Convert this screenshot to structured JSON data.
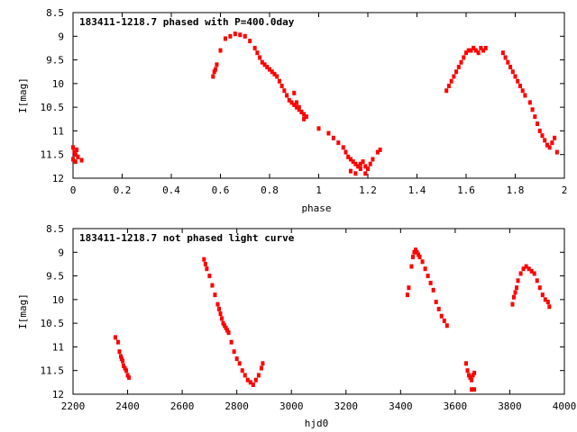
{
  "chart_data": [
    {
      "type": "scatter",
      "title": "183411-1218.7 phased with P=400.0day",
      "xlabel": "phase",
      "ylabel": "I[mag]",
      "xlim": [
        0,
        2
      ],
      "ylim": [
        12,
        8.5
      ],
      "y_inverted": true,
      "grid": false,
      "xticks": [
        0,
        0.2,
        0.4,
        0.6,
        0.8,
        1,
        1.2,
        1.4,
        1.6,
        1.8,
        2
      ],
      "xtick_labels": [
        "0",
        "0.2",
        "0.4",
        "0.6",
        "0.8",
        "1",
        "1.2",
        "1.4",
        "1.6",
        "1.8",
        "2"
      ],
      "yticks": [
        8.5,
        9,
        9.5,
        10,
        10.5,
        11,
        11.5,
        12
      ],
      "ytick_labels": [
        "8.5",
        "9",
        "9.5",
        "10",
        "10.5",
        "11",
        "11.5",
        "12"
      ],
      "marker_color": "#ff0000",
      "series": [
        {
          "x": [
            0.0,
            0.005,
            0.01,
            0.015,
            0.02,
            0.0,
            0.01,
            0.035,
            0.57,
            0.575,
            0.58,
            0.585,
            0.6,
            0.62,
            0.64,
            0.66,
            0.68,
            0.7,
            0.72,
            0.74,
            0.75,
            0.76,
            0.77,
            0.78,
            0.79,
            0.8,
            0.81,
            0.82,
            0.83,
            0.84,
            0.85,
            0.86,
            0.87,
            0.88,
            0.89,
            0.9,
            0.91,
            0.92,
            0.93,
            0.94,
            0.95,
            0.9,
            0.91,
            0.92,
            0.93,
            0.94,
            1.0,
            1.04,
            1.06,
            1.08,
            1.1,
            1.11,
            1.12,
            1.13,
            1.14,
            1.15,
            1.16,
            1.17,
            1.18,
            1.19,
            1.2,
            1.21,
            1.13,
            1.15,
            1.17,
            1.19,
            1.22,
            1.24,
            1.25,
            1.52,
            1.53,
            1.54,
            1.55,
            1.56,
            1.57,
            1.58,
            1.59,
            1.6,
            1.61,
            1.62,
            1.63,
            1.64,
            1.65,
            1.66,
            1.67,
            1.68,
            1.75,
            1.76,
            1.77,
            1.78,
            1.79,
            1.8,
            1.81,
            1.82,
            1.83,
            1.84,
            1.86,
            1.87,
            1.88,
            1.89,
            1.9,
            1.91,
            1.92,
            1.93,
            1.94,
            1.95,
            1.96,
            1.97
          ],
          "y": [
            11.35,
            11.45,
            11.5,
            11.4,
            11.55,
            11.6,
            11.65,
            11.62,
            9.85,
            9.75,
            9.7,
            9.6,
            9.3,
            9.05,
            9.0,
            8.95,
            8.97,
            9.0,
            9.1,
            9.25,
            9.35,
            9.45,
            9.55,
            9.6,
            9.65,
            9.7,
            9.75,
            9.8,
            9.85,
            9.95,
            10.05,
            10.15,
            10.25,
            10.35,
            10.4,
            10.45,
            10.5,
            10.55,
            10.6,
            10.65,
            10.7,
            10.2,
            10.4,
            10.5,
            10.6,
            10.75,
            10.95,
            11.05,
            11.15,
            11.25,
            11.35,
            11.45,
            11.55,
            11.6,
            11.65,
            11.7,
            11.75,
            11.7,
            11.65,
            11.75,
            11.8,
            11.7,
            11.85,
            11.9,
            11.8,
            11.9,
            11.6,
            11.45,
            11.4,
            10.15,
            10.05,
            9.95,
            9.85,
            9.75,
            9.65,
            9.55,
            9.45,
            9.35,
            9.3,
            9.3,
            9.25,
            9.3,
            9.35,
            9.25,
            9.3,
            9.25,
            9.35,
            9.45,
            9.55,
            9.65,
            9.75,
            9.85,
            9.95,
            10.05,
            10.15,
            10.25,
            10.4,
            10.55,
            10.7,
            10.85,
            11.0,
            11.1,
            11.2,
            11.3,
            11.35,
            11.25,
            11.15,
            11.45
          ]
        }
      ]
    },
    {
      "type": "scatter",
      "title": "183411-1218.7 not phased light curve",
      "xlabel": "hjd0",
      "ylabel": "I[mag]",
      "xlim": [
        2200,
        4000
      ],
      "ylim": [
        12,
        8.5
      ],
      "y_inverted": true,
      "grid": false,
      "xticks": [
        2200,
        2400,
        2600,
        2800,
        3000,
        3200,
        3400,
        3600,
        3800,
        4000
      ],
      "xtick_labels": [
        "2200",
        "2400",
        "2600",
        "2800",
        "3000",
        "3200",
        "3400",
        "3600",
        "3800",
        "4000"
      ],
      "yticks": [
        8.5,
        9,
        9.5,
        10,
        10.5,
        11,
        11.5,
        12
      ],
      "ytick_labels": [
        "8.5",
        "9",
        "9.5",
        "10",
        "10.5",
        "11",
        "11.5",
        "12"
      ],
      "marker_color": "#ff0000",
      "series": [
        {
          "x": [
            2355,
            2365,
            2370,
            2375,
            2378,
            2382,
            2385,
            2390,
            2395,
            2400,
            2405,
            2680,
            2685,
            2690,
            2700,
            2710,
            2720,
            2730,
            2735,
            2740,
            2745,
            2750,
            2755,
            2760,
            2765,
            2770,
            2780,
            2790,
            2800,
            2810,
            2820,
            2830,
            2840,
            2850,
            2860,
            2870,
            2880,
            2890,
            2895,
            3425,
            3430,
            3440,
            3445,
            3450,
            3455,
            3460,
            3465,
            3470,
            3480,
            3490,
            3500,
            3510,
            3520,
            3530,
            3540,
            3550,
            3560,
            3570,
            3640,
            3645,
            3650,
            3655,
            3660,
            3665,
            3670,
            3660,
            3670,
            3810,
            3815,
            3820,
            3825,
            3830,
            3840,
            3850,
            3860,
            3870,
            3880,
            3890,
            3900,
            3910,
            3920,
            3930,
            3940,
            3945
          ],
          "y": [
            10.8,
            10.9,
            11.1,
            11.2,
            11.25,
            11.3,
            11.4,
            11.45,
            11.5,
            11.6,
            11.65,
            9.15,
            9.25,
            9.35,
            9.5,
            9.7,
            9.9,
            10.1,
            10.2,
            10.3,
            10.4,
            10.5,
            10.55,
            10.6,
            10.65,
            10.7,
            10.9,
            11.1,
            11.25,
            11.35,
            11.5,
            11.6,
            11.7,
            11.75,
            11.8,
            11.7,
            11.6,
            11.45,
            11.35,
            9.9,
            9.75,
            9.3,
            9.1,
            9.0,
            8.95,
            9.0,
            9.05,
            9.1,
            9.2,
            9.35,
            9.5,
            9.65,
            9.8,
            10.05,
            10.2,
            10.35,
            10.45,
            10.55,
            11.35,
            11.5,
            11.6,
            11.65,
            11.7,
            11.6,
            11.55,
            11.9,
            11.9,
            10.1,
            9.95,
            9.85,
            9.75,
            9.6,
            9.45,
            9.35,
            9.3,
            9.35,
            9.4,
            9.45,
            9.6,
            9.75,
            9.9,
            10.0,
            10.05,
            10.15
          ]
        }
      ]
    }
  ]
}
